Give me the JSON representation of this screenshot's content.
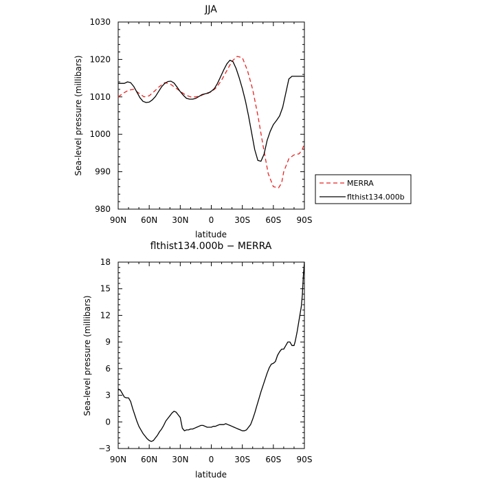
{
  "chart_data": [
    {
      "type": "line",
      "title": "JJA",
      "xlabel": "latitude",
      "ylabel": "Sea-level pressure (millibars)",
      "xlim": [
        90,
        -90
      ],
      "ylim": [
        980,
        1030
      ],
      "x_ticks": [
        90,
        60,
        30,
        0,
        -30,
        -60,
        -90
      ],
      "x_tick_labels": [
        "90N",
        "60N",
        "30N",
        "0",
        "30S",
        "60S",
        "90S"
      ],
      "y_ticks": [
        980,
        990,
        1000,
        1010,
        1020,
        1030
      ],
      "y_tick_labels": [
        "980",
        "990",
        "1000",
        "1010",
        "1020",
        "1030"
      ],
      "grid": false,
      "legend": {
        "position": "right",
        "entries": [
          "MERRA",
          "flthist134.000b"
        ]
      },
      "series": [
        {
          "name": "MERRA",
          "color": "#e8221f",
          "dash": "dashed",
          "x": [
            90,
            85,
            80,
            75,
            70,
            65,
            60,
            55,
            50,
            45,
            40,
            35,
            30,
            25,
            20,
            15,
            10,
            5,
            0,
            -5,
            -10,
            -15,
            -20,
            -25,
            -30,
            -35,
            -40,
            -45,
            -50,
            -55,
            -60,
            -65,
            -68,
            -70,
            -75,
            -80,
            -85,
            -88,
            -90
          ],
          "y": [
            1010,
            1011,
            1011.8,
            1012,
            1011,
            1010,
            1010.3,
            1011.5,
            1012.8,
            1013.8,
            1013.5,
            1012.5,
            1011.5,
            1010.5,
            1010,
            1010,
            1010.3,
            1011,
            1011.3,
            1012.5,
            1014.5,
            1017,
            1019.5,
            1020.8,
            1020.5,
            1017,
            1012,
            1005,
            997,
            989.5,
            986,
            985.7,
            987,
            990,
            993.5,
            994.5,
            994.8,
            996,
            997.5
          ]
        },
        {
          "name": "flthist134.000b",
          "color": "#000000",
          "dash": "solid",
          "x": [
            90,
            87,
            84,
            81,
            78,
            75,
            72,
            69,
            66,
            63,
            60,
            57,
            54,
            51,
            48,
            45,
            42,
            39,
            36,
            33,
            30,
            27,
            24,
            21,
            18,
            15,
            12,
            9,
            6,
            3,
            0,
            -3,
            -6,
            -9,
            -12,
            -15,
            -18,
            -21,
            -24,
            -27,
            -30,
            -33,
            -36,
            -39,
            -42,
            -45,
            -48,
            -51,
            -54,
            -57,
            -60,
            -63,
            -66,
            -69,
            -72,
            -75,
            -78,
            -81,
            -84,
            -87,
            -90
          ],
          "y": [
            1013.6,
            1013.6,
            1013.6,
            1014,
            1013.8,
            1012.8,
            1011.3,
            1009.8,
            1008.8,
            1008.5,
            1008.6,
            1009.2,
            1010.1,
            1011.4,
            1012.7,
            1013.6,
            1014.1,
            1014.2,
            1013.7,
            1012.6,
            1011.4,
            1010.4,
            1009.6,
            1009.4,
            1009.4,
            1009.6,
            1010.1,
            1010.6,
            1010.8,
            1011,
            1011.5,
            1012.2,
            1013.6,
            1015.4,
            1017.2,
            1018.8,
            1019.8,
            1019.4,
            1017.6,
            1015.1,
            1012.2,
            1008.9,
            1004.9,
            1000.4,
            995.9,
            993,
            992.8,
            994.7,
            998.4,
            1000.8,
            1002.6,
            1003.7,
            1004.9,
            1007.2,
            1011,
            1014.8,
            1015.5,
            1015.5,
            1015.5,
            1015.5,
            1015.5
          ]
        }
      ]
    },
    {
      "type": "line",
      "title": "flthist134.000b − MERRA",
      "xlabel": "latitude",
      "ylabel": "Sea-level pressure (millibars)",
      "xlim": [
        90,
        -90
      ],
      "ylim": [
        -3,
        18
      ],
      "x_ticks": [
        90,
        60,
        30,
        0,
        -30,
        -60,
        -90
      ],
      "x_tick_labels": [
        "90N",
        "60N",
        "30N",
        "0",
        "30S",
        "60S",
        "90S"
      ],
      "y_ticks": [
        -3,
        0,
        3,
        6,
        9,
        12,
        15,
        18
      ],
      "y_tick_labels": [
        "−3",
        "0",
        "3",
        "6",
        "9",
        "12",
        "15",
        "18"
      ],
      "grid": false,
      "series": [
        {
          "color": "#000000",
          "dash": "solid",
          "x": [
            90,
            88,
            86,
            84,
            82,
            80,
            78,
            76,
            74,
            72,
            70,
            68,
            66,
            64,
            62,
            60,
            58,
            56,
            54,
            52,
            50,
            48,
            46,
            44,
            42,
            40,
            38,
            36,
            34,
            32,
            30,
            28,
            26,
            24,
            22,
            20,
            18,
            16,
            14,
            12,
            10,
            8,
            6,
            4,
            2,
            0,
            -2,
            -4,
            -6,
            -8,
            -10,
            -12,
            -14,
            -16,
            -18,
            -20,
            -22,
            -24,
            -26,
            -28,
            -30,
            -32,
            -34,
            -36,
            -38,
            -40,
            -42,
            -44,
            -46,
            -48,
            -50,
            -52,
            -54,
            -56,
            -58,
            -60,
            -62,
            -64,
            -66,
            -68,
            -70,
            -72,
            -74,
            -76,
            -78,
            -80,
            -81,
            -82,
            -83,
            -84,
            -85,
            -86,
            -87,
            -88,
            -89,
            -90
          ],
          "y": [
            3.7,
            3.6,
            3.2,
            2.8,
            2.7,
            2.7,
            2.3,
            1.5,
            0.8,
            0.1,
            -0.5,
            -0.9,
            -1.3,
            -1.6,
            -1.9,
            -2.1,
            -2.2,
            -2.1,
            -1.8,
            -1.5,
            -1.1,
            -0.8,
            -0.4,
            0.1,
            0.4,
            0.7,
            1,
            1.2,
            1.1,
            0.8,
            0.5,
            -0.7,
            -1,
            -0.9,
            -0.9,
            -0.8,
            -0.8,
            -0.7,
            -0.6,
            -0.5,
            -0.4,
            -0.4,
            -0.5,
            -0.6,
            -0.6,
            -0.6,
            -0.5,
            -0.5,
            -0.4,
            -0.3,
            -0.3,
            -0.3,
            -0.2,
            -0.3,
            -0.4,
            -0.5,
            -0.6,
            -0.7,
            -0.8,
            -0.9,
            -1,
            -1,
            -0.9,
            -0.6,
            -0.3,
            0.3,
            1,
            1.8,
            2.6,
            3.4,
            4.1,
            4.8,
            5.5,
            6.1,
            6.5,
            6.6,
            6.8,
            7.5,
            7.9,
            8.2,
            8.2,
            8.6,
            9,
            9,
            8.6,
            8.6,
            9,
            9.6,
            10.2,
            10.9,
            11.6,
            12.3,
            13,
            14.3,
            16.5,
            18
          ]
        }
      ]
    }
  ]
}
